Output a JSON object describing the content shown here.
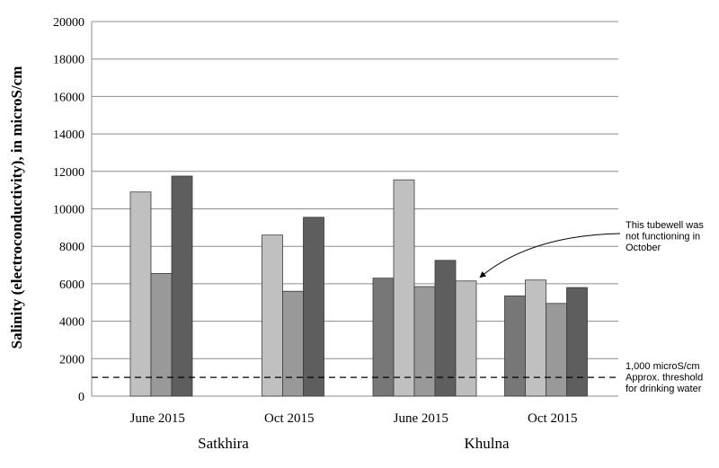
{
  "chart_data": {
    "type": "bar",
    "ylabel": "Salinity (electroconductivity), in microS/cm",
    "ylim": [
      0,
      20000
    ],
    "yticks": [
      0,
      2000,
      4000,
      6000,
      8000,
      10000,
      12000,
      14000,
      16000,
      18000,
      20000
    ],
    "grid": true,
    "groups": [
      {
        "label": "June 2015",
        "region": "Satkhira",
        "bars": [
          {
            "value": null,
            "color": "#777777"
          },
          {
            "value": 10900,
            "color": "#c0c0c0"
          },
          {
            "value": 6550,
            "color": "#999999"
          },
          {
            "value": 11750,
            "color": "#5e5e5e"
          }
        ]
      },
      {
        "label": "Oct 2015",
        "region": "Satkhira",
        "bars": [
          {
            "value": null,
            "color": "#777777"
          },
          {
            "value": 8600,
            "color": "#c0c0c0"
          },
          {
            "value": 5600,
            "color": "#999999"
          },
          {
            "value": 9550,
            "color": "#5e5e5e"
          }
        ]
      },
      {
        "label": "June 2015",
        "region": "Khulna",
        "bars": [
          {
            "value": 6300,
            "color": "#777777"
          },
          {
            "value": 11550,
            "color": "#c0c0c0"
          },
          {
            "value": 5850,
            "color": "#999999"
          },
          {
            "value": 7250,
            "color": "#5e5e5e"
          },
          {
            "value": 6150,
            "color": "#bdbdbd"
          }
        ]
      },
      {
        "label": "Oct 2015",
        "region": "Khulna",
        "bars": [
          {
            "value": 5350,
            "color": "#777777"
          },
          {
            "value": 6200,
            "color": "#c0c0c0"
          },
          {
            "value": 4950,
            "color": "#999999"
          },
          {
            "value": 5800,
            "color": "#5e5e5e"
          }
        ]
      }
    ],
    "regions": [
      "Satkhira",
      "Khulna"
    ],
    "threshold": {
      "value": 1000,
      "label_lines": [
        "1,000 microS/cm",
        "Approx. threshold",
        "for drinking water"
      ]
    },
    "annotation": {
      "text_lines": [
        "This tubewell was",
        "not functioning in",
        "October"
      ],
      "target_group": 2,
      "target_bar": 4
    }
  }
}
